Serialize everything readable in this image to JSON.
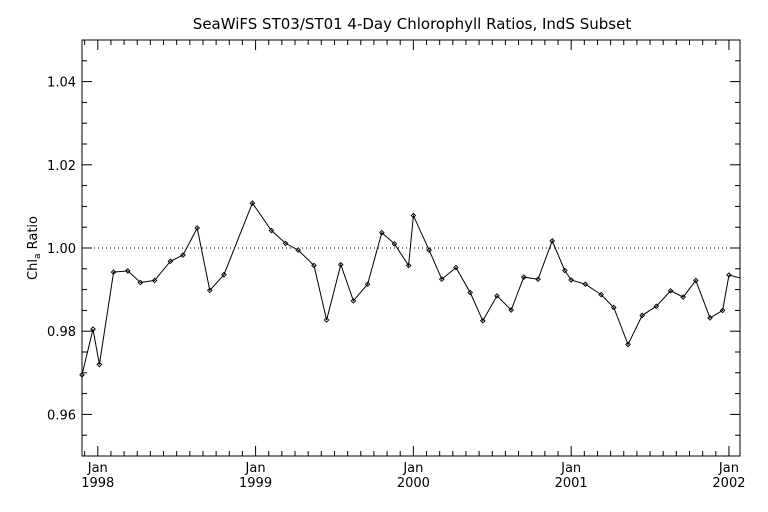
{
  "chart_data": {
    "type": "line",
    "title": "SeaWiFS ST03/ST01 4-Day Chlorophyll Ratios, IndS Subset",
    "ylabel_main": "Chl",
    "ylabel_sub": "a",
    "ylabel_rest": " Ratio",
    "xlim": [
      1997.9,
      2002.07
    ],
    "ylim": [
      0.95,
      1.05
    ],
    "y_ticks": [
      {
        "value": 0.96,
        "label": "0.96"
      },
      {
        "value": 0.98,
        "label": "0.98"
      },
      {
        "value": 1.0,
        "label": "1.00"
      },
      {
        "value": 1.02,
        "label": "1.02"
      },
      {
        "value": 1.04,
        "label": "1.04"
      }
    ],
    "x_ticks": [
      {
        "value": 1998.0,
        "month": "Jan",
        "year": "1998"
      },
      {
        "value": 1999.0,
        "month": "Jan",
        "year": "1999"
      },
      {
        "value": 2000.0,
        "month": "Jan",
        "year": "2000"
      },
      {
        "value": 2001.0,
        "month": "Jan",
        "year": "2001"
      },
      {
        "value": 2002.0,
        "month": "Jan",
        "year": "2002"
      }
    ],
    "reference_line": 1.0,
    "x": [
      1997.9,
      1997.97,
      1998.01,
      1998.1,
      1998.19,
      1998.27,
      1998.36,
      1998.46,
      1998.54,
      1998.63,
      1998.71,
      1998.8,
      1998.98,
      1999.1,
      1999.19,
      1999.27,
      1999.37,
      1999.45,
      1999.54,
      1999.62,
      1999.71,
      1999.8,
      1999.88,
      1999.97,
      2000.0,
      2000.1,
      2000.18,
      2000.27,
      2000.36,
      2000.44,
      2000.53,
      2000.62,
      2000.7,
      2000.79,
      2000.88,
      2000.96,
      2001.0,
      2001.09,
      2001.19,
      2001.27,
      2001.36,
      2001.45,
      2001.54,
      2001.63,
      2001.71,
      2001.79,
      2001.88,
      2001.96,
      2002.0
    ],
    "y": [
      0.9695,
      0.9805,
      0.972,
      0.9942,
      0.9945,
      0.9917,
      0.9922,
      0.9968,
      0.9983,
      1.0048,
      0.9898,
      0.9936,
      1.0108,
      1.0042,
      1.0011,
      0.9995,
      0.9958,
      0.9827,
      0.996,
      0.9873,
      0.9913,
      1.0037,
      1.001,
      0.9958,
      1.0078,
      0.9995,
      0.9925,
      0.9953,
      0.9893,
      0.9825,
      0.9885,
      0.9851,
      0.993,
      0.9925,
      1.0017,
      0.9946,
      0.9923,
      0.9913,
      0.9888,
      0.9857,
      0.9768,
      0.9838,
      0.986,
      0.9897,
      0.9882,
      0.9922,
      0.9832,
      0.985,
      0.9935
    ],
    "trailing_y": 0.9928,
    "grid": false,
    "legend": "none"
  }
}
